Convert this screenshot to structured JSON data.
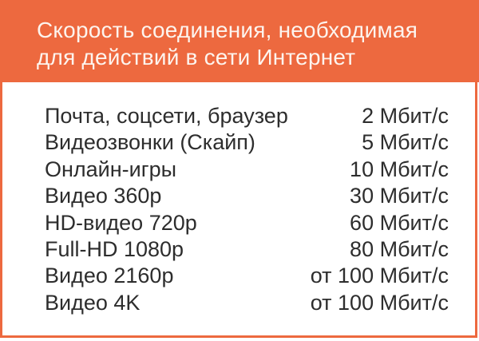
{
  "header": {
    "title_line1": "Скорость соединения, необходимая",
    "title_line2": "для действий в сети Интернет"
  },
  "table": {
    "rows": [
      {
        "activity": "Почта, соцсети, браузер",
        "speed": "2 Мбит/с"
      },
      {
        "activity": "Видеозвонки (Скайп)",
        "speed": "5 Мбит/с"
      },
      {
        "activity": "Онлайн-игры",
        "speed": "10 Мбит/с"
      },
      {
        "activity": "Видео 360p",
        "speed": "30 Мбит/с"
      },
      {
        "activity": "HD-видео 720p",
        "speed": "60 Мбит/с"
      },
      {
        "activity": "Full-HD 1080p",
        "speed": "80 Мбит/с"
      },
      {
        "activity": "Видео 2160p",
        "speed": "от 100 Мбит/с"
      },
      {
        "activity": "Видео 4K",
        "speed": "от 100 Мбит/с"
      }
    ]
  },
  "colors": {
    "accent_orange": "#ED693F",
    "header_text": "#FDF4EE",
    "body_text": "#2D2D2D",
    "background": "#FFFFFF"
  },
  "chart_data": {
    "type": "table",
    "title": "Скорость соединения, необходимая для действий в сети Интернет",
    "rows": [
      [
        "Почта, соцсети, браузер",
        "2 Мбит/с"
      ],
      [
        "Видеозвонки (Скайп)",
        "5 Мбит/с"
      ],
      [
        "Онлайн-игры",
        "10 Мбит/с"
      ],
      [
        "Видео 360p",
        "30 Мбит/с"
      ],
      [
        "HD-видео 720p",
        "60 Мбит/с"
      ],
      [
        "Full-HD 1080p",
        "80 Мбит/с"
      ],
      [
        "Видео 2160p",
        "от 100 Мбит/с"
      ],
      [
        "Видео 4K",
        "от 100 Мбит/с"
      ]
    ],
    "speeds_mbit_min": [
      2,
      5,
      10,
      30,
      60,
      80,
      100,
      100
    ]
  }
}
